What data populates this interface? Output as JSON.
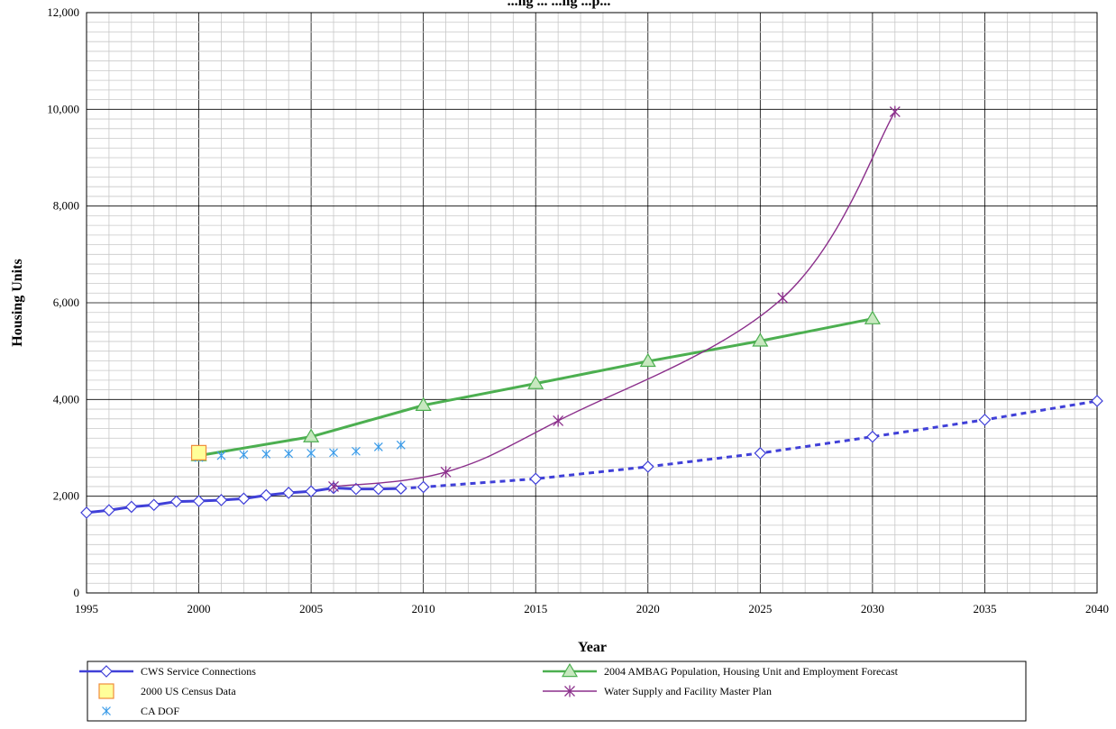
{
  "chart_data": {
    "type": "line",
    "title": "...ng ... ...ng ...p...",
    "xlabel": "Year",
    "ylabel": "Housing Units",
    "xlim": [
      1995,
      2040
    ],
    "ylim": [
      0,
      12000
    ],
    "x_ticks": [
      1995,
      2000,
      2005,
      2010,
      2015,
      2020,
      2025,
      2030,
      2035,
      2040
    ],
    "y_ticks": [
      0,
      2000,
      4000,
      6000,
      8000,
      10000,
      12000
    ],
    "x_tick_labels": [
      "1995",
      "2000",
      "2005",
      "2010",
      "2015",
      "2020",
      "2025",
      "2030",
      "2035",
      "2040"
    ],
    "y_tick_labels": [
      "0",
      "2,000",
      "4,000",
      "6,000",
      "8,000",
      "10,000",
      "12,000"
    ],
    "grid": true,
    "legend_position": "bottom",
    "series": [
      {
        "name": "CWS Service Connections",
        "color": "#4040d8",
        "marker": "diamond",
        "style": "solid",
        "x": [
          1995,
          1996,
          1997,
          1998,
          1999,
          2000,
          2001,
          2002,
          2003,
          2004,
          2005,
          2006,
          2007,
          2008,
          2009
        ],
        "y": [
          1660,
          1710,
          1780,
          1820,
          1890,
          1900,
          1920,
          1950,
          2020,
          2070,
          2100,
          2170,
          2150,
          2150,
          2160
        ]
      },
      {
        "name": "CWS Service Connections (projected)",
        "in_legend": false,
        "color": "#4040d8",
        "marker": "diamond",
        "style": "dashed",
        "x": [
          2009,
          2010,
          2015,
          2020,
          2025,
          2030,
          2035,
          2040
        ],
        "y": [
          2160,
          2190,
          2360,
          2610,
          2890,
          3230,
          3580,
          3970
        ]
      },
      {
        "name": "2004 AMBAG Population, Housing Unit and Employment Forecast",
        "color": "#4caf50",
        "marker": "triangle",
        "style": "solid",
        "x": [
          2000,
          2005,
          2010,
          2015,
          2020,
          2025,
          2030
        ],
        "y": [
          2840,
          3230,
          3880,
          4330,
          4790,
          5210,
          5670
        ]
      },
      {
        "name": "2000 US Census Data",
        "color": "#f08c3c",
        "marker": "square",
        "style": "none",
        "x": [
          2000
        ],
        "y": [
          2900
        ]
      },
      {
        "name": "Water Supply and Facility Master Plan",
        "color": "#8b2f8b",
        "marker": "star",
        "style": "solid",
        "x": [
          2006,
          2011,
          2016,
          2026,
          2031
        ],
        "y": [
          2200,
          2500,
          3560,
          6100,
          9950
        ]
      },
      {
        "name": "CA DOF",
        "color": "#3a9be8",
        "marker": "asterisk",
        "style": "none",
        "x": [
          2000,
          2001,
          2002,
          2003,
          2004,
          2005,
          2006,
          2007,
          2008,
          2009
        ],
        "y": [
          2800,
          2840,
          2860,
          2870,
          2880,
          2890,
          2900,
          2930,
          3020,
          3060
        ]
      }
    ]
  },
  "legend": {
    "items": [
      {
        "label": "CWS Service Connections",
        "color": "#4040d8",
        "marker": "diamond"
      },
      {
        "label": "2004 AMBAG Population, Housing Unit and Employment Forecast",
        "color": "#4caf50",
        "marker": "triangle"
      },
      {
        "label": "2000 US Census Data",
        "color": "#f08c3c",
        "marker": "square"
      },
      {
        "label": "Water Supply and Facility Master Plan",
        "color": "#8b2f8b",
        "marker": "star"
      },
      {
        "label": "CA DOF",
        "color": "#3a9be8",
        "marker": "asterisk"
      }
    ]
  }
}
